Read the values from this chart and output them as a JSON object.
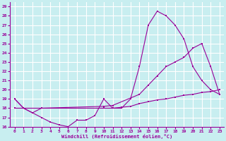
{
  "xlabel": "Windchill (Refroidissement éolien,°C)",
  "bg_color": "#c8eef0",
  "line_color": "#990099",
  "grid_color": "#ffffff",
  "xlim": [
    -0.5,
    23.5
  ],
  "ylim": [
    16,
    29.5
  ],
  "yticks": [
    16,
    17,
    18,
    19,
    20,
    21,
    22,
    23,
    24,
    25,
    26,
    27,
    28,
    29
  ],
  "xticks": [
    0,
    1,
    2,
    3,
    4,
    5,
    6,
    7,
    8,
    9,
    10,
    11,
    12,
    13,
    14,
    15,
    16,
    17,
    18,
    19,
    20,
    21,
    22,
    23
  ],
  "series1_x": [
    0,
    1,
    2,
    3,
    4,
    5,
    6,
    7,
    8,
    9,
    10,
    11,
    12,
    13,
    14,
    15,
    16,
    17,
    18,
    19,
    20,
    21,
    22,
    23
  ],
  "series1_y": [
    19.0,
    18.0,
    17.5,
    17.0,
    16.5,
    16.2,
    16.0,
    16.7,
    16.7,
    17.2,
    19.0,
    18.0,
    18.0,
    19.0,
    22.5,
    27.0,
    28.5,
    28.0,
    27.0,
    25.5,
    22.5,
    21.0,
    20.0,
    19.5
  ],
  "series2_x": [
    0,
    1,
    3,
    10,
    11,
    14,
    15,
    16,
    17,
    18,
    19,
    20,
    21,
    22,
    23
  ],
  "series2_y": [
    18.0,
    18.0,
    18.0,
    18.2,
    18.3,
    19.5,
    20.5,
    21.5,
    22.5,
    23.0,
    23.5,
    24.5,
    25.0,
    22.5,
    19.5
  ],
  "series3_x": [
    0,
    1,
    2,
    3,
    10,
    11,
    12,
    13,
    14,
    15,
    16,
    17,
    18,
    19,
    20,
    21,
    22,
    23
  ],
  "series3_y": [
    19.0,
    18.0,
    17.5,
    18.0,
    18.0,
    18.0,
    18.1,
    18.2,
    18.5,
    18.7,
    18.9,
    19.0,
    19.2,
    19.4,
    19.5,
    19.7,
    19.8,
    20.0
  ]
}
